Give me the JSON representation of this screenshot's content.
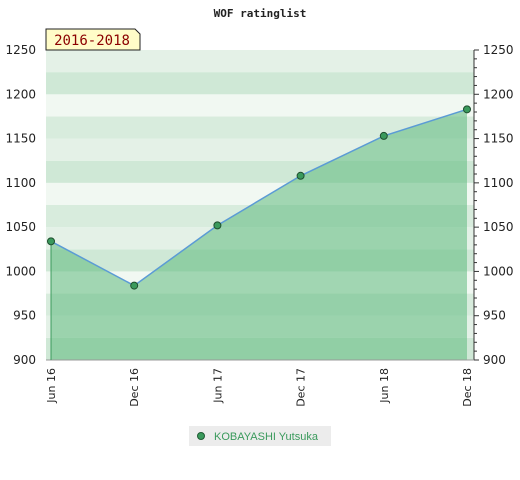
{
  "chart_data": {
    "type": "area",
    "title": "WOF ratinglist",
    "period_label": "2016-2018",
    "x_labels": [
      "Jun 16",
      "Dec 16",
      "Jun 17",
      "Dec 17",
      "Jun 18",
      "Dec 18"
    ],
    "y_ticks": [
      900,
      950,
      1000,
      1050,
      1100,
      1150,
      1200,
      1250
    ],
    "ylim": [
      900,
      1250
    ],
    "series": [
      {
        "name": "KOBAYASHI Yutsuka",
        "values": [
          1034,
          984,
          1052,
          1108,
          1153,
          1183
        ]
      }
    ],
    "legend": "bottom-center",
    "grid": "horizontal bands",
    "colors": {
      "line": "#5b9bd5",
      "fill": "#5fba7d",
      "marker": "#3a9a5c",
      "legend_text": "#3a9a5c",
      "period_box": "#fffcc8",
      "period_text": "#8b0000"
    }
  }
}
